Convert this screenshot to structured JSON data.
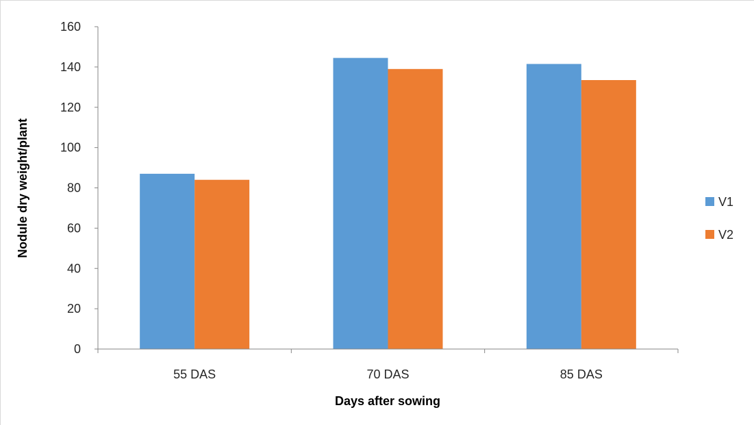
{
  "chart_data": {
    "type": "bar",
    "categories": [
      "55 DAS",
      "70 DAS",
      "85 DAS"
    ],
    "series": [
      {
        "name": "V1",
        "values": [
          87,
          144.5,
          141.5
        ],
        "color": "#5b9bd5"
      },
      {
        "name": "V2",
        "values": [
          84,
          139,
          133.5
        ],
        "color": "#ed7d31"
      }
    ],
    "title": "",
    "xlabel": "Days after sowing",
    "ylabel": "Nodule dry weight/plant",
    "ylim": [
      0,
      160
    ],
    "yticks": [
      0,
      20,
      40,
      60,
      80,
      100,
      120,
      140,
      160
    ],
    "grid": false,
    "legend_position": "right"
  }
}
